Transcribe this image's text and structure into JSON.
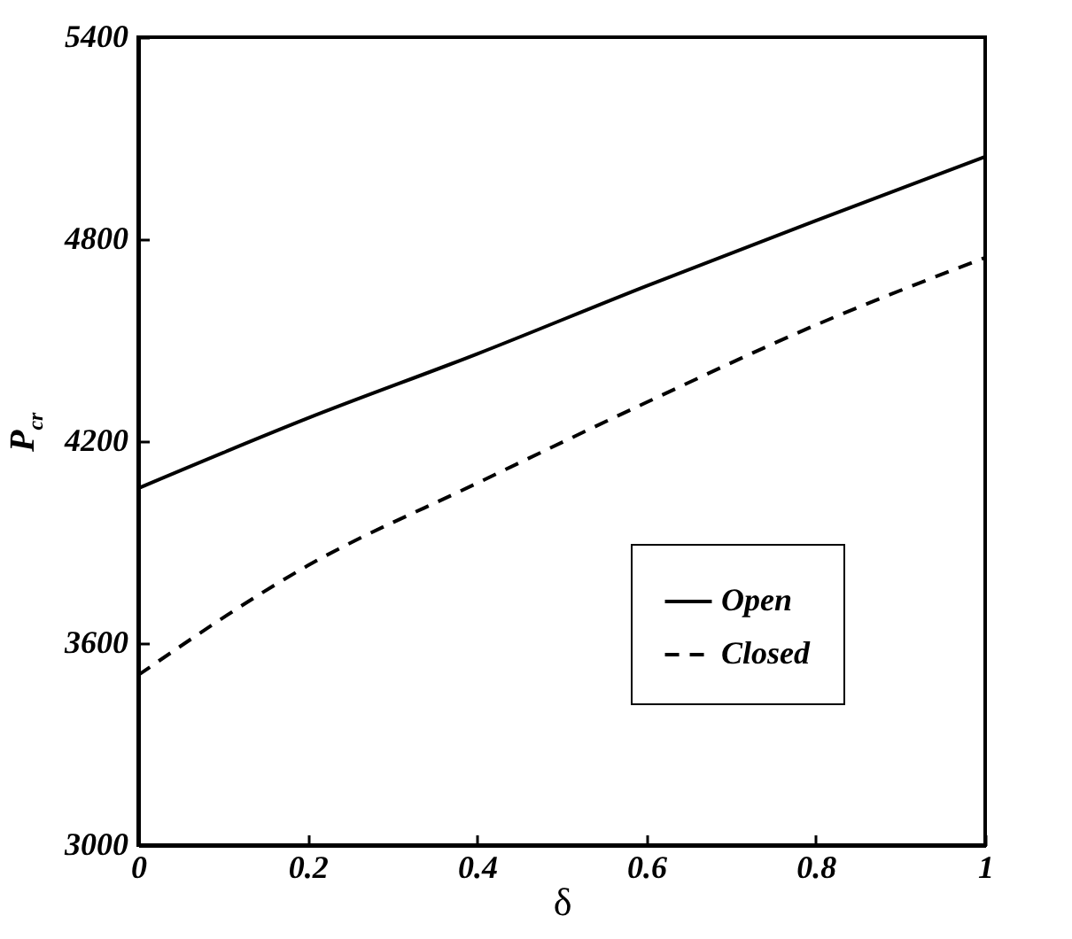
{
  "chart_data": {
    "type": "line",
    "xlabel": "δ",
    "ylabel": "P$_{cr}$",
    "x": [
      0,
      0.2,
      0.4,
      0.6,
      0.8,
      1
    ],
    "series": [
      {
        "name": "Open",
        "color": "#000000",
        "line_style": "solid",
        "values": [
          4060,
          4268,
          4459,
          4661,
          4855,
          5045
        ]
      },
      {
        "name": "Closed",
        "color": "#000000",
        "line_style": "dashed",
        "values": [
          3505,
          3830,
          4075,
          4315,
          4545,
          4745
        ]
      }
    ],
    "xlim": [
      0,
      1
    ],
    "xticks": [
      0,
      0.2,
      0.4,
      0.6,
      0.8,
      1
    ],
    "ylim": [
      3000,
      5400
    ],
    "yticks": [
      3000,
      3600,
      4200,
      4800,
      5400
    ],
    "grid": false,
    "legend": "bottom right",
    "marker": "none"
  }
}
